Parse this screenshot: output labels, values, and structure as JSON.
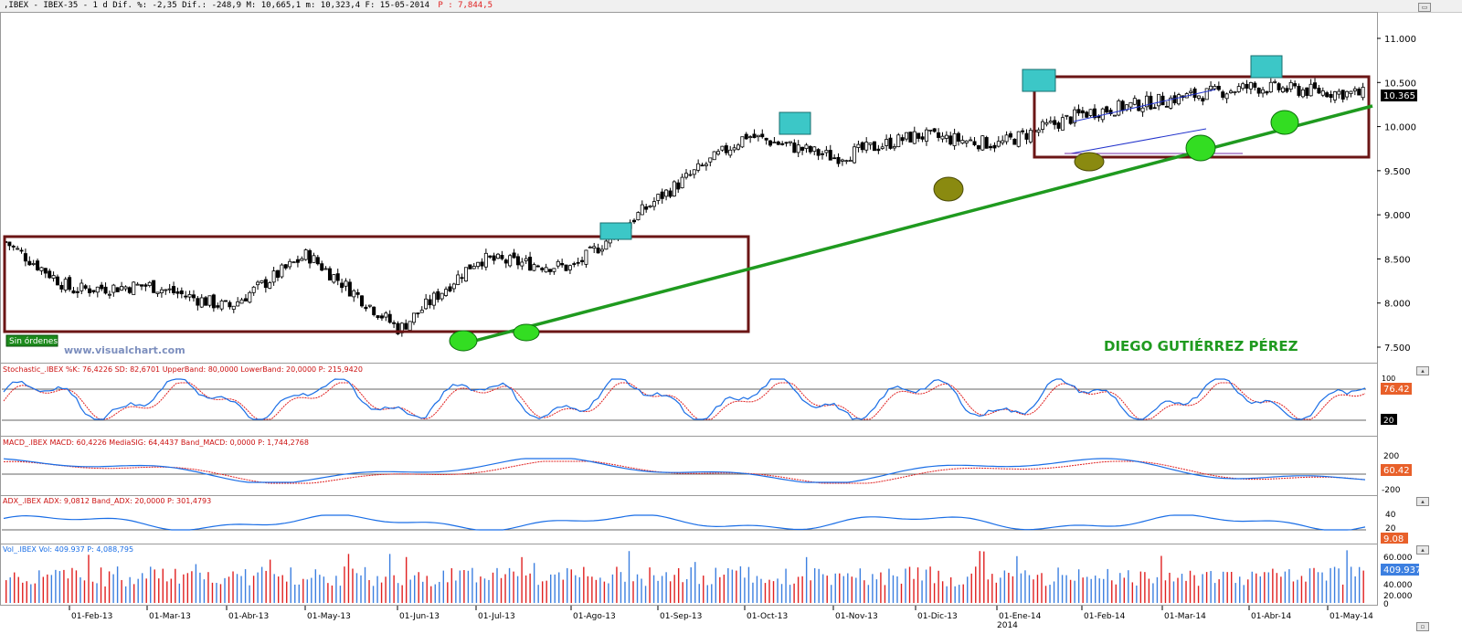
{
  "header": {
    "prefix": ",IBEX - IBEX-35 - 1 d Dif. %: -2,35 Dif.: -248,9 M: 10,665,1 m: 10,323,4 F: 15-05-2014",
    "suffix": "P : 7,844,5"
  },
  "main": {
    "sin_ordenes": "Sin órdenes",
    "watermark": "www.visualchart.com",
    "author": "DIEGO GUTIÉRREZ PÉREZ",
    "last_price": "10.365",
    "y_ticks": [
      "11.000",
      "10.500",
      "10.000",
      "9.500",
      "9.000",
      "8.500",
      "8.000",
      "7.500"
    ]
  },
  "stochastic": {
    "legend": "Stochastic_.IBEX %K: 76,4226 SD: 82,6701 UpperBand: 80,0000 LowerBand: 20,0000 P: 215,9420",
    "ticks": [
      "100",
      "20"
    ],
    "last_value": "76.42"
  },
  "macd": {
    "legend": "MACD_.IBEX MACD: 60,4226 MediaSIG: 64,4437 Band_MACD: 0,0000 P: 1,744,2768",
    "ticks": [
      "200",
      "-200"
    ],
    "last_value": "60.42"
  },
  "adx": {
    "legend": "ADX_.IBEX ADX: 9,0812 Band_ADX: 20,0000 P: 301,4793",
    "ticks": [
      "40",
      "20"
    ],
    "last_value": "9.08"
  },
  "volume": {
    "legend": "Vol_.IBEX Vol: 409.937 P: 4,088,795",
    "ticks": [
      "60.000",
      "40.000",
      "20.000",
      "0"
    ],
    "last_value": "409.937"
  },
  "x_axis": {
    "labels": [
      "01-Feb-13",
      "01-Mar-13",
      "01-Abr-13",
      "01-May-13",
      "01-Jun-13",
      "01-Jul-13",
      "01-Ago-13",
      "01-Sep-13",
      "01-Oct-13",
      "01-Nov-13",
      "01-Dic-13",
      "01-Ene-14",
      "01-Feb-14",
      "01-Mar-14",
      "01-Abr-14",
      "01-May-14"
    ],
    "year_marker": "2014"
  },
  "chart_data": {
    "type": "candlestick",
    "title": "IBEX-35 1 d",
    "y_range": [
      7300,
      11200
    ],
    "monthly_closes": [
      {
        "month": "Ene-13",
        "close": 8700
      },
      {
        "month": "Feb-13",
        "close": 8150
      },
      {
        "month": "Mar-13",
        "close": 8200
      },
      {
        "month": "Abr-13",
        "close": 7950
      },
      {
        "month": "May-13",
        "close": 8550
      },
      {
        "month": "Jun-13",
        "close": 7700
      },
      {
        "month": "Jul-13",
        "close": 8500
      },
      {
        "month": "Ago-13",
        "close": 8400
      },
      {
        "month": "Sep-13",
        "close": 9200
      },
      {
        "month": "Oct-13",
        "close": 9900
      },
      {
        "month": "Nov-13",
        "close": 9650
      },
      {
        "month": "Dic-13",
        "close": 9900
      },
      {
        "month": "Ene-14",
        "close": 9800
      },
      {
        "month": "Feb-14",
        "close": 10150
      },
      {
        "month": "Mar-14",
        "close": 10300
      },
      {
        "month": "Abr-14",
        "close": 10450
      },
      {
        "month": "May-14",
        "close": 10365
      }
    ],
    "colors": {
      "trendline": "#1f9a1f",
      "box": "#6b1515",
      "highlight_top": "#3cc7c7",
      "highlight_bottom": "#33dd22",
      "highlight_olive": "#8a8a10",
      "k_line": "#1a6ee6",
      "d_line": "#e02020",
      "last_price_bg": "#000000",
      "indicator_value_bg": "#e8602a"
    }
  }
}
